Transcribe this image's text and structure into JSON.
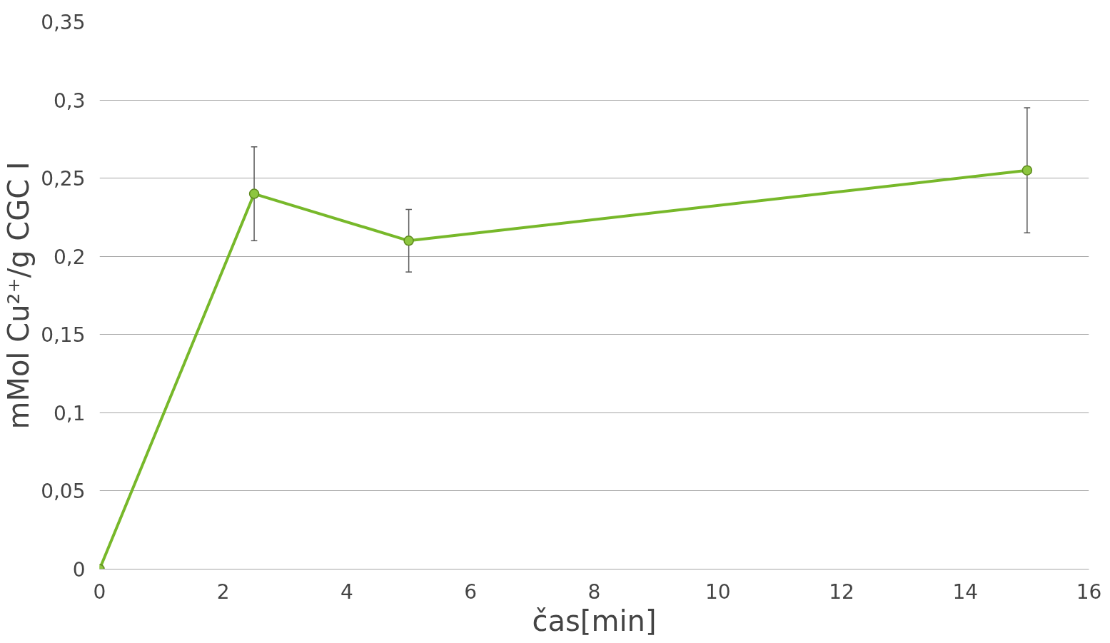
{
  "chart_data": {
    "type": "line",
    "xlabel": "čas[min]",
    "ylabel": "mMol Cu²⁺/g CGC I",
    "x": [
      0,
      2.5,
      5,
      15
    ],
    "series": [
      {
        "color": "#77b82a",
        "values": [
          0,
          0.24,
          0.21,
          0.255
        ],
        "errors": [
          null,
          0.03,
          0.02,
          0.04
        ]
      }
    ],
    "xlim": [
      0,
      16
    ],
    "xticks": [
      0,
      2,
      4,
      6,
      8,
      10,
      12,
      14,
      16
    ],
    "ylim": [
      0,
      0.35
    ],
    "yticks": [
      {
        "value": 0,
        "label": "0"
      },
      {
        "value": 0.05,
        "label": "0,05"
      },
      {
        "value": 0.1,
        "label": "0,1"
      },
      {
        "value": 0.15,
        "label": "0,15"
      },
      {
        "value": 0.2,
        "label": "0,2"
      },
      {
        "value": 0.25,
        "label": "0,25"
      },
      {
        "value": 0.3,
        "label": "0,3"
      },
      {
        "value": 0.35,
        "label": "0,35"
      }
    ],
    "grid": "y",
    "marker": "circle",
    "line_style": "solid"
  }
}
